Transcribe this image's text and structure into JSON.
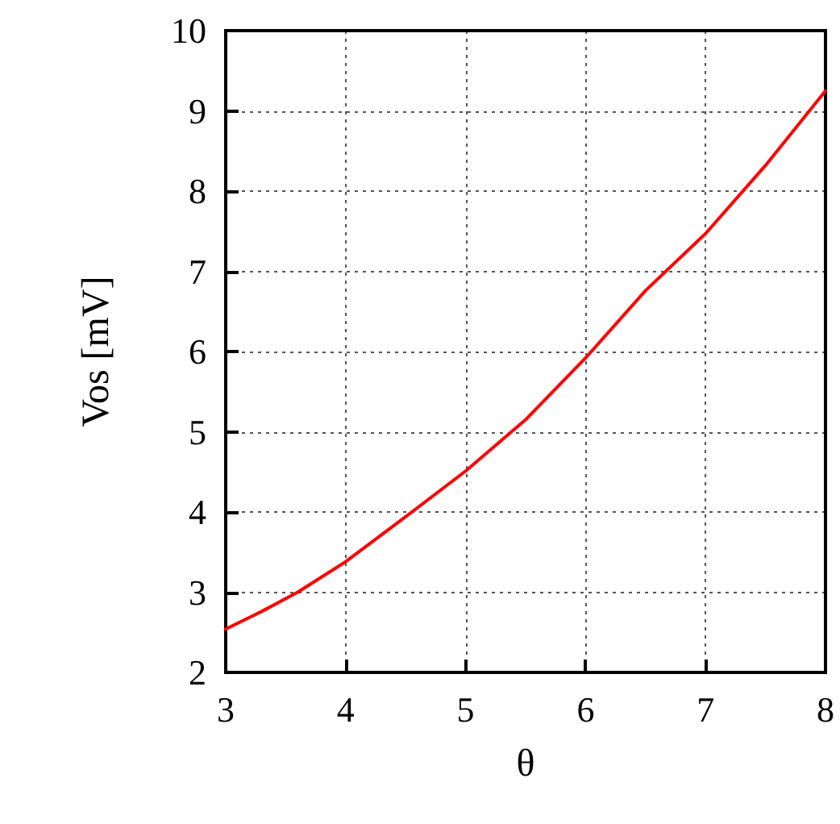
{
  "chart_data": {
    "type": "line",
    "xlabel": "θ",
    "ylabel": "Vos [mV]",
    "x": [
      3,
      3.3,
      3.6,
      4,
      4.5,
      5,
      5.5,
      6,
      6.5,
      7,
      7.5,
      8
    ],
    "series": [
      {
        "color": "#ff0000",
        "values": [
          2.54,
          2.76,
          3.0,
          3.38,
          3.94,
          4.51,
          5.15,
          5.92,
          6.76,
          7.47,
          8.32,
          9.25
        ]
      }
    ],
    "xlim": [
      3,
      8
    ],
    "xticks": [
      3,
      4,
      5,
      6,
      7,
      8
    ],
    "ylim": [
      2,
      10
    ],
    "yticks": [
      2,
      3,
      4,
      5,
      6,
      7,
      8,
      9,
      10
    ],
    "grid": true,
    "marker": "none",
    "line_style": "solid"
  }
}
